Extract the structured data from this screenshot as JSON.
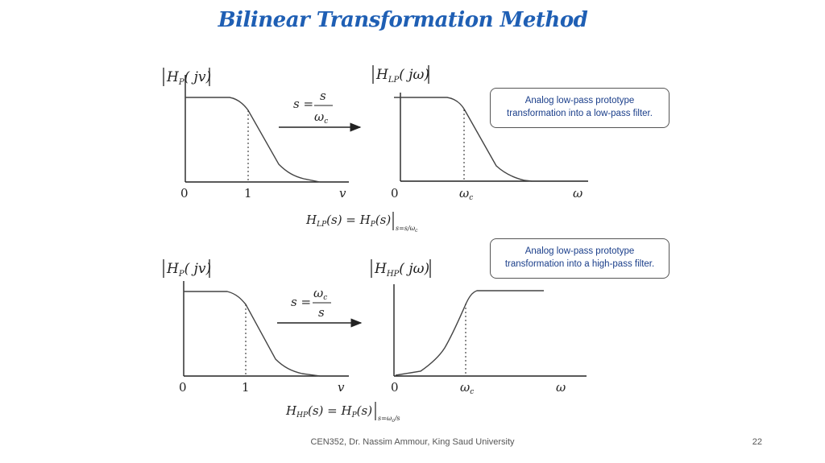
{
  "slide": {
    "title": "Bilinear Transformation Method",
    "footer": "CEN352, Dr. Nassim Ammour, King Saud University",
    "page_number": "22"
  },
  "callouts": {
    "lowpass": [
      "Analog low-pass prototype",
      "transformation into a low-pass filter."
    ],
    "highpass": [
      "Analog low-pass prototype",
      "transformation into a high-pass filter."
    ]
  },
  "top_row": {
    "prototype_ylabel": {
      "base": "H",
      "sub": "P",
      "arg": "( jv)"
    },
    "prototype_ticks": [
      "0",
      "1",
      "v"
    ],
    "mapping": {
      "lhs": "s =",
      "num": "s",
      "den_base": "ω",
      "den_sub": "c"
    },
    "target_ylabel": {
      "base": "H",
      "sub": "LP",
      "arg": "( jω)"
    },
    "target_ticks": {
      "zero": "0",
      "cut_base": "ω",
      "cut_sub": "c",
      "axis": "ω"
    },
    "equation": {
      "lhs_base": "H",
      "lhs_sub": "LP",
      "lhs_arg": "(s) = ",
      "rhs_base": "H",
      "rhs_sub": "P",
      "rhs_arg": "(s)",
      "eval": "s=s/ω",
      "eval_sub": "c"
    }
  },
  "bottom_row": {
    "prototype_ylabel": {
      "base": "H",
      "sub": "P",
      "arg": "( jv)"
    },
    "prototype_ticks": [
      "0",
      "1",
      "v"
    ],
    "mapping": {
      "lhs": "s =",
      "num_base": "ω",
      "num_sub": "c",
      "den": "s"
    },
    "target_ylabel": {
      "base": "H",
      "sub": "HP",
      "arg": "( jω)"
    },
    "target_ticks": {
      "zero": "0",
      "cut_base": "ω",
      "cut_sub": "c",
      "axis": "ω"
    },
    "equation": {
      "lhs_base": "H",
      "lhs_sub": "HP",
      "lhs_arg": "(s) = ",
      "rhs_base": "H",
      "rhs_sub": "P",
      "rhs_arg": "(s)",
      "eval": "s=ω",
      "eval_sub": "c",
      "eval_tail": "/s"
    }
  }
}
